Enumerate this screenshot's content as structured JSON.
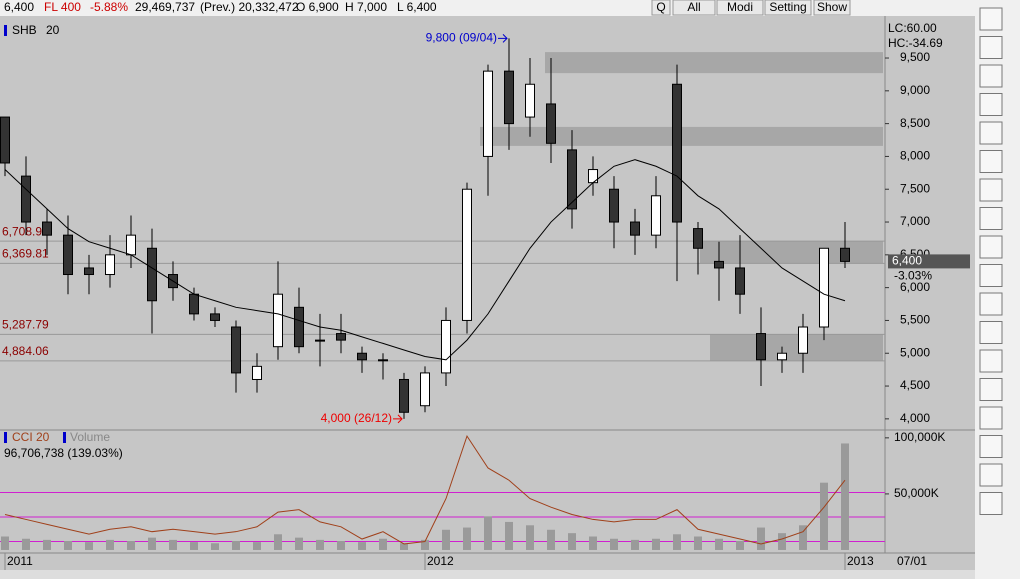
{
  "toolbar": {
    "price": "6,400",
    "fl": "FL 400",
    "change": "-5.88%",
    "volume": "29,469,737",
    "prev": "(Prev.) 20,332,472",
    "open": "O 6,900",
    "high": "H 7,000",
    "low": "L 6,400",
    "buttons": [
      "Q",
      "All",
      "Modi",
      "Setting",
      "Show"
    ]
  },
  "chart_data": {
    "type": "candlestick",
    "title": "SHB",
    "period": "20",
    "categories": [
      "2011",
      null,
      null,
      null,
      null,
      null,
      null,
      null,
      null,
      null,
      null,
      null,
      null,
      null,
      null,
      null,
      null,
      null,
      null,
      null,
      "2012",
      null,
      null,
      null,
      null,
      null,
      null,
      null,
      null,
      null,
      null,
      null,
      null,
      null,
      null,
      null,
      null,
      null,
      null,
      null,
      "2013"
    ],
    "x_extra_label": "07/01",
    "open": [
      8600,
      7700,
      7000,
      6800,
      6300,
      6200,
      6500,
      6600,
      6200,
      5900,
      5600,
      5400,
      4600,
      5100,
      5700,
      5200,
      5300,
      5000,
      4900,
      4600,
      4200,
      4700,
      5500,
      8000,
      9300,
      8600,
      8800,
      8100,
      7600,
      7500,
      7000,
      6800,
      9100,
      6900,
      6400,
      6300,
      5300,
      4900,
      5000,
      5400,
      6600
    ],
    "high": [
      8600,
      8000,
      7200,
      7100,
      6500,
      6800,
      7100,
      6900,
      6400,
      6000,
      5700,
      5500,
      5000,
      6400,
      6000,
      5600,
      5600,
      5100,
      5000,
      4700,
      4800,
      5700,
      7600,
      9400,
      9800,
      9500,
      9500,
      8400,
      8000,
      7700,
      7200,
      7700,
      9400,
      7000,
      6700,
      6800,
      5700,
      5100,
      5600,
      6600,
      7000
    ],
    "low": [
      7700,
      6800,
      6500,
      5900,
      5900,
      6000,
      6300,
      5300,
      5800,
      5500,
      5400,
      4400,
      4400,
      4900,
      5000,
      4800,
      5000,
      4700,
      4600,
      4000,
      4100,
      4500,
      5300,
      7400,
      8100,
      8300,
      7900,
      6900,
      7400,
      6600,
      6500,
      6600,
      6100,
      6200,
      5800,
      5600,
      4500,
      4700,
      4700,
      5200,
      6300
    ],
    "close": [
      7900,
      7000,
      6800,
      6200,
      6200,
      6500,
      6800,
      5800,
      6000,
      5600,
      5500,
      4700,
      4800,
      5900,
      5100,
      5200,
      5200,
      4900,
      4900,
      4100,
      4700,
      5500,
      7500,
      9300,
      8500,
      9100,
      8200,
      7200,
      7800,
      7000,
      6800,
      7400,
      7000,
      6600,
      6300,
      5900,
      4900,
      5000,
      5400,
      6600,
      6400
    ],
    "ma": [
      7800,
      7500,
      7200,
      6900,
      6700,
      6600,
      6500,
      6300,
      6100,
      5900,
      5800,
      5700,
      5650,
      5600,
      5500,
      5400,
      5350,
      5250,
      5150,
      5050,
      4950,
      4900,
      5200,
      5600,
      6100,
      6600,
      7000,
      7300,
      7600,
      7850,
      7950,
      7850,
      7700,
      7400,
      7200,
      6900,
      6600,
      6300,
      6100,
      5900,
      5800
    ],
    "ylim": [
      3830,
      10110
    ],
    "yticks": [
      {
        "value": 4000,
        "label": "4,000"
      },
      {
        "value": 4500,
        "label": "4,500"
      },
      {
        "value": 5000,
        "label": "5,000"
      },
      {
        "value": 5500,
        "label": "5,500"
      },
      {
        "value": 6000,
        "label": "6,000"
      },
      {
        "value": 6500,
        "label": "6,500"
      },
      {
        "value": 7000,
        "label": "7,000"
      },
      {
        "value": 7500,
        "label": "7,500"
      },
      {
        "value": 8000,
        "label": "8,000"
      },
      {
        "value": 8500,
        "label": "8,500"
      },
      {
        "value": 9000,
        "label": "9,000"
      },
      {
        "value": 9500,
        "label": "9,500"
      }
    ],
    "levels": [
      {
        "value": 6708.95,
        "label": "6,708.95"
      },
      {
        "value": 6369.81,
        "label": "6,369.81"
      },
      {
        "value": 5287.79,
        "label": "5,287.79"
      },
      {
        "value": 4884.06,
        "label": "4,884.06"
      }
    ],
    "zones": [
      [
        9270,
        9590
      ],
      [
        8160,
        8450
      ],
      [
        6369.81,
        6708.95
      ],
      [
        4884.06,
        5287.79
      ]
    ],
    "high_note": {
      "index": 24,
      "label": "9,800 (09/04)"
    },
    "low_note": {
      "index": 19,
      "label": "4,000 (26/12)"
    },
    "lc": "LC:60.00",
    "hc": "HC:-34.69",
    "last": {
      "value": 6400,
      "label": "6,400",
      "change": "-3.03%"
    },
    "lower": {
      "cci_name": "CCI 20",
      "volume_name": "Volume",
      "summary": "96,706,738 (139.03%)",
      "volume": [
        12000,
        10000,
        9000,
        8000,
        7000,
        9000,
        8000,
        11000,
        9000,
        7000,
        6000,
        8000,
        7000,
        14000,
        11000,
        9000,
        8000,
        7000,
        10000,
        6000,
        9000,
        18000,
        20000,
        30000,
        25000,
        22000,
        18000,
        15000,
        12000,
        10000,
        9000,
        10000,
        14000,
        12000,
        10000,
        8000,
        20000,
        15000,
        22000,
        60000,
        95000
      ],
      "ylim": [
        -2700,
        107000
      ],
      "yticks": [
        {
          "value": 50000,
          "label": "50,000K"
        },
        {
          "value": 100000,
          "label": "100,000K"
        }
      ],
      "cci": [
        10,
        -10,
        -30,
        -50,
        -70,
        -50,
        -40,
        -60,
        -50,
        -60,
        -70,
        -60,
        -40,
        20,
        30,
        -20,
        -40,
        -90,
        -60,
        -110,
        -100,
        75,
        330,
        200,
        150,
        75,
        40,
        10,
        -10,
        -20,
        -10,
        -10,
        30,
        -50,
        -70,
        -90,
        -110,
        -90,
        -60,
        40,
        150
      ],
      "y2lim": [
        -147,
        355
      ],
      "cci_levels": [
        -100,
        0,
        100
      ]
    }
  }
}
